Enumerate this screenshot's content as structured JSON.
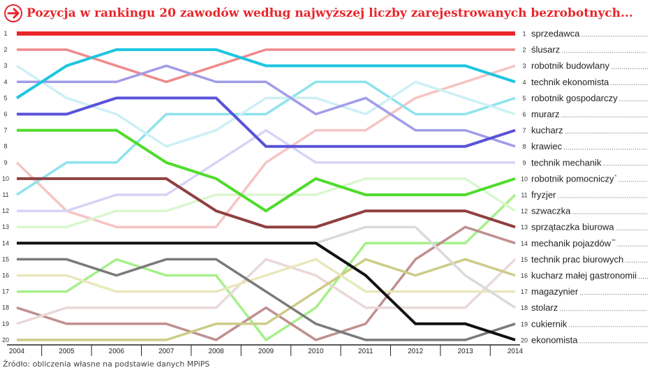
{
  "title": "Pozycja w rankingu 20 zawodów według najwyższej liczby zarejestrowanych bezrobotnych...",
  "source": "Źródło: obliczenia własne na podstawie danych MPiPS",
  "chart_data": {
    "type": "line",
    "title": "Pozycja w rankingu 20 zawodów według najwyższej liczby zarejestrowanych bezrobotnych...",
    "x": [
      "2004",
      "2005",
      "2006",
      "2007",
      "2008",
      "2009",
      "2010",
      "2011",
      "2012",
      "2013",
      "2014"
    ],
    "y_ticks": [
      1,
      2,
      3,
      4,
      5,
      6,
      7,
      8,
      9,
      10,
      11,
      12,
      13,
      14,
      15,
      16,
      17,
      18,
      19,
      20
    ],
    "ylim": [
      1,
      20
    ],
    "y_reversed": true,
    "grid": false,
    "series": [
      {
        "rank": 1,
        "name": "sprzedawca",
        "marker": "",
        "color": "#e8262b",
        "width": 6,
        "values": [
          1,
          1,
          1,
          1,
          1,
          1,
          1,
          1,
          1,
          1,
          1
        ]
      },
      {
        "rank": 2,
        "name": "ślusarz",
        "marker": "",
        "color": "#f08a8a",
        "width": 3.5,
        "values": [
          2,
          2,
          3,
          4,
          3,
          2,
          2,
          2,
          2,
          2,
          2
        ]
      },
      {
        "rank": 3,
        "name": "robotnik budowlany",
        "marker": "",
        "color": "#f6c4c4",
        "width": 3.5,
        "values": [
          9,
          12,
          13,
          13,
          13,
          9,
          7,
          7,
          5,
          4,
          3
        ]
      },
      {
        "rank": 4,
        "name": "technik ekonomista",
        "marker": "",
        "color": "#1ec5e0",
        "width": 4,
        "values": [
          5,
          3,
          2,
          2,
          2,
          3,
          3,
          3,
          3,
          3,
          4
        ]
      },
      {
        "rank": 5,
        "name": "robotnik gospodarczy",
        "marker": "",
        "color": "#8ee3ec",
        "width": 3.5,
        "values": [
          11,
          9,
          9,
          6,
          6,
          6,
          4,
          4,
          6,
          6,
          5
        ]
      },
      {
        "rank": 6,
        "name": "murarz",
        "marker": "",
        "color": "#cdf0f5",
        "width": 3.5,
        "values": [
          3,
          5,
          6,
          8,
          7,
          5,
          5,
          6,
          4,
          5,
          6
        ]
      },
      {
        "rank": 7,
        "name": "kucharz",
        "marker": "",
        "color": "#5a52d8",
        "width": 4,
        "values": [
          6,
          6,
          5,
          5,
          5,
          8,
          8,
          8,
          8,
          8,
          7
        ]
      },
      {
        "rank": 8,
        "name": "krawiec",
        "marker": "",
        "color": "#a29ce8",
        "width": 3.5,
        "values": [
          4,
          4,
          4,
          3,
          4,
          4,
          6,
          5,
          7,
          7,
          8
        ]
      },
      {
        "rank": 9,
        "name": "technik mechanik",
        "marker": "",
        "color": "#d6d4f5",
        "width": 3.5,
        "values": [
          12,
          12,
          11,
          11,
          9,
          7,
          9,
          9,
          9,
          9,
          9
        ]
      },
      {
        "rank": 10,
        "name": "robotnik pomocniczy",
        "marker": "*",
        "color": "#4fdb2c",
        "width": 4,
        "values": [
          7,
          7,
          7,
          9,
          10,
          12,
          10,
          11,
          11,
          11,
          10
        ]
      },
      {
        "rank": 11,
        "name": "fryzjer",
        "marker": "",
        "color": "#a6f08a",
        "width": 3.5,
        "values": [
          17,
          17,
          15,
          16,
          16,
          20,
          18,
          14,
          14,
          14,
          11
        ]
      },
      {
        "rank": 12,
        "name": "szwaczka",
        "marker": "",
        "color": "#d9f7cd",
        "width": 3.5,
        "values": [
          13,
          13,
          12,
          12,
          11,
          11,
          11,
          10,
          10,
          10,
          12
        ]
      },
      {
        "rank": 13,
        "name": "sprzątaczka biurowa",
        "marker": "",
        "color": "#8f4040",
        "width": 4,
        "values": [
          10,
          10,
          10,
          10,
          12,
          13,
          13,
          12,
          12,
          12,
          13
        ]
      },
      {
        "rank": 14,
        "name": "mechanik pojazdów",
        "marker": "**",
        "color": "#c09090",
        "width": 3.5,
        "values": [
          18,
          19,
          19,
          19,
          20,
          18,
          20,
          19,
          15,
          13,
          14
        ]
      },
      {
        "rank": 15,
        "name": "technik prac biurowych",
        "marker": "",
        "color": "#ead8d8",
        "width": 3.5,
        "values": [
          19,
          18,
          18,
          18,
          18,
          15,
          16,
          18,
          18,
          18,
          15
        ]
      },
      {
        "rank": 16,
        "name": "kucharz małej gastronomii",
        "marker": "",
        "color": "#cccc88",
        "width": 3.5,
        "values": [
          20,
          20,
          20,
          20,
          19,
          19,
          17,
          15,
          16,
          15,
          16
        ]
      },
      {
        "rank": 17,
        "name": "magazynier",
        "marker": "",
        "color": "#e8e8bc",
        "width": 3.5,
        "values": [
          16,
          16,
          17,
          17,
          17,
          16,
          15,
          17,
          17,
          17,
          17
        ]
      },
      {
        "rank": 18,
        "name": "stolarz",
        "marker": "",
        "color": "#7a7a7a",
        "width": 3.5,
        "values": [
          15,
          15,
          16,
          15,
          15,
          17,
          19,
          20,
          20,
          20,
          19
        ]
      },
      {
        "rank": 19,
        "name": "cukiernik",
        "marker": "",
        "color": "#dadada",
        "width": 3.5,
        "values": [
          14,
          14,
          14,
          14,
          14,
          14,
          14,
          13,
          13,
          16,
          18
        ]
      },
      {
        "rank": 20,
        "name": "ekonomista",
        "marker": "",
        "color": "#111111",
        "width": 4,
        "values": [
          14,
          14,
          14,
          14,
          14,
          14,
          14,
          16,
          19,
          19,
          20
        ]
      }
    ]
  }
}
